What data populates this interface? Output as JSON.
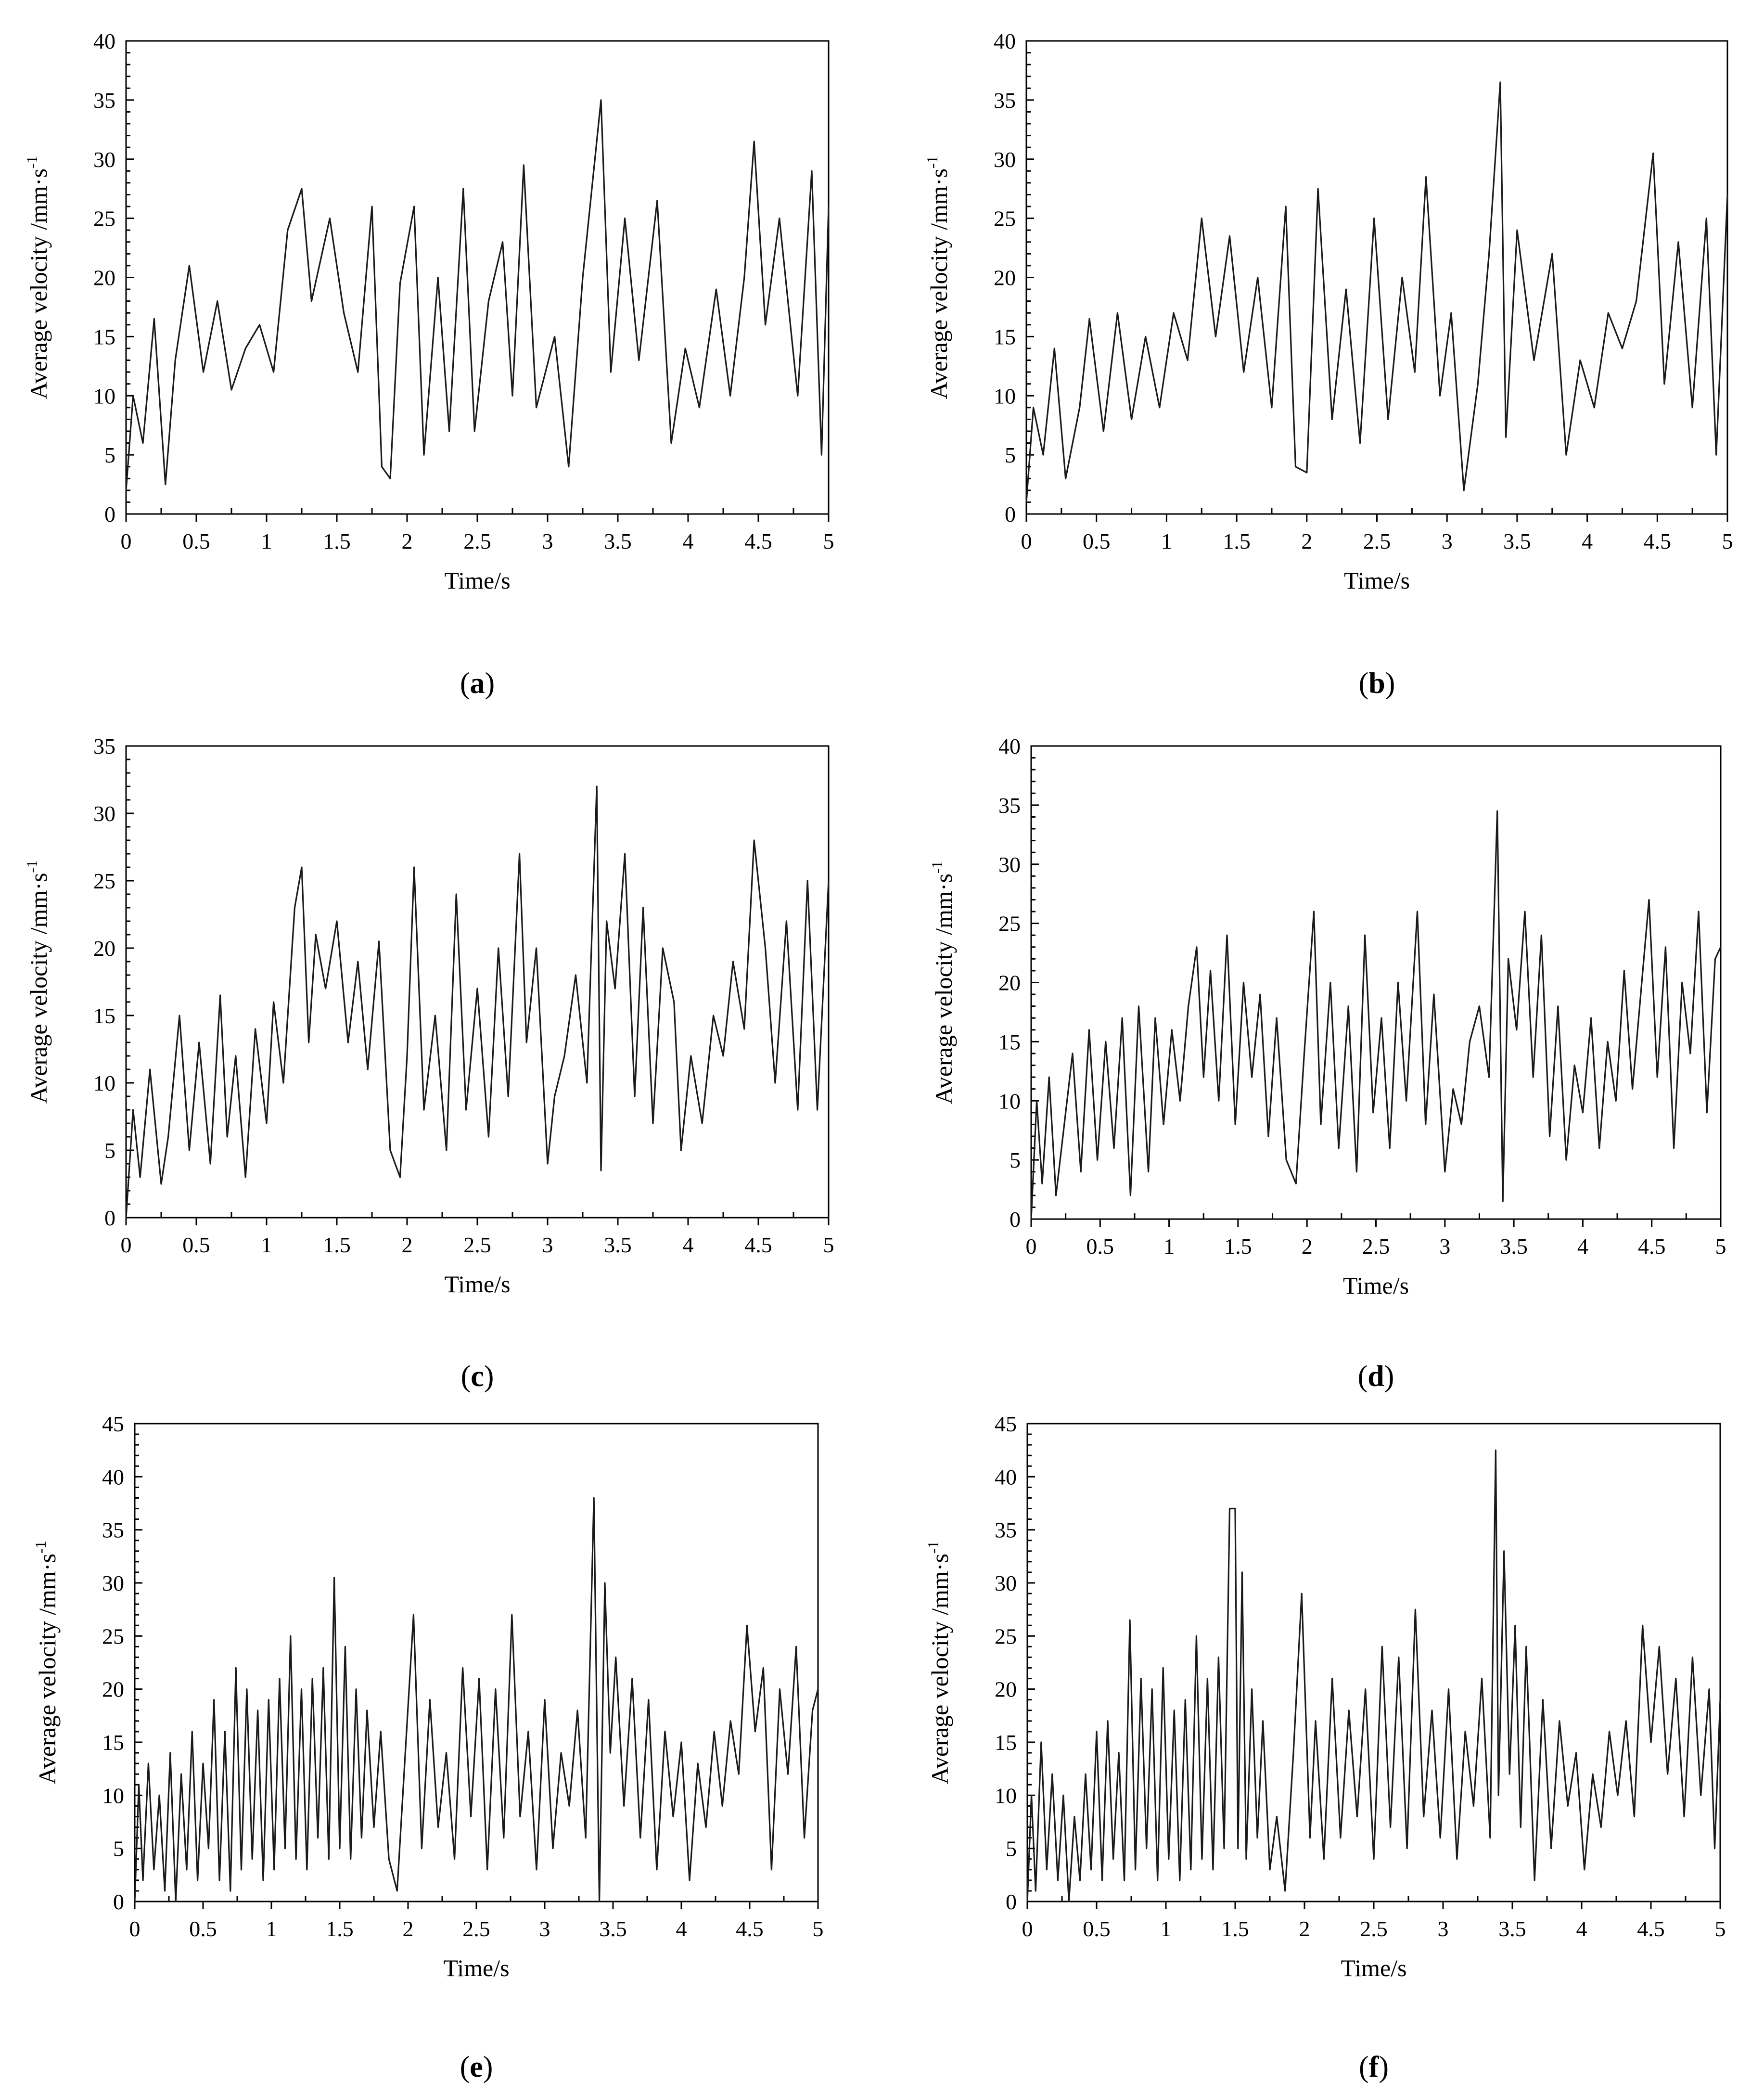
{
  "chart_data": [
    {
      "panel": "(a)",
      "type": "line",
      "xlabel": "Time/s",
      "ylabel": "Average velocity /mm·s",
      "ylabel_sup": "-1",
      "xlim": [
        0,
        5
      ],
      "ylim": [
        0,
        40
      ],
      "xticks": [
        0,
        0.5,
        1,
        1.5,
        2,
        2.5,
        3,
        3.5,
        4,
        4.5,
        5
      ],
      "yticks": [
        0,
        5,
        10,
        15,
        20,
        25,
        30,
        35,
        40
      ],
      "grid": false,
      "series": [
        {
          "x": [
            0,
            0.05,
            0.12,
            0.2,
            0.28,
            0.35,
            0.45,
            0.55,
            0.65,
            0.75,
            0.85,
            0.95,
            1.05,
            1.15,
            1.25,
            1.32,
            1.45,
            1.55,
            1.65,
            1.75,
            1.82,
            1.88,
            1.95,
            2.05,
            2.12,
            2.22,
            2.3,
            2.4,
            2.48,
            2.58,
            2.68,
            2.75,
            2.83,
            2.92,
            3.05,
            3.15,
            3.25,
            3.38,
            3.45,
            3.55,
            3.65,
            3.78,
            3.88,
            3.98,
            4.08,
            4.2,
            4.3,
            4.4,
            4.47,
            4.55,
            4.65,
            4.78,
            4.88,
            4.95,
            5.0
          ],
          "y": [
            2,
            10,
            6,
            16.5,
            2.5,
            13,
            21,
            12,
            18,
            10.5,
            14,
            16,
            12,
            24,
            27.5,
            18,
            25,
            17,
            12,
            26,
            4,
            3,
            19.5,
            26,
            5,
            20,
            7,
            27.5,
            7,
            18,
            23,
            10,
            29.5,
            9,
            15,
            4,
            20,
            35,
            12,
            25,
            13,
            26.5,
            6,
            14,
            9,
            19,
            10,
            20,
            31.5,
            16,
            25,
            10,
            29,
            5,
            26
          ]
        }
      ]
    },
    {
      "panel": "(b)",
      "type": "line",
      "xlabel": "Time/s",
      "ylabel": "Average velocity /mm·s",
      "ylabel_sup": "-1",
      "xlim": [
        0,
        5
      ],
      "ylim": [
        0,
        40
      ],
      "xticks": [
        0,
        0.5,
        1,
        1.5,
        2,
        2.5,
        3,
        3.5,
        4,
        4.5,
        5
      ],
      "yticks": [
        0,
        5,
        10,
        15,
        20,
        25,
        30,
        35,
        40
      ],
      "grid": false,
      "series": [
        {
          "x": [
            0,
            0.05,
            0.12,
            0.2,
            0.28,
            0.38,
            0.45,
            0.55,
            0.65,
            0.75,
            0.85,
            0.95,
            1.05,
            1.15,
            1.25,
            1.35,
            1.45,
            1.55,
            1.65,
            1.75,
            1.85,
            1.92,
            2.0,
            2.08,
            2.18,
            2.28,
            2.38,
            2.48,
            2.58,
            2.68,
            2.77,
            2.85,
            2.95,
            3.03,
            3.12,
            3.22,
            3.3,
            3.38,
            3.42,
            3.5,
            3.62,
            3.75,
            3.85,
            3.95,
            4.05,
            4.15,
            4.25,
            4.35,
            4.47,
            4.55,
            4.65,
            4.75,
            4.85,
            4.92,
            5.0
          ],
          "y": [
            1,
            9,
            5,
            14,
            3,
            9,
            16.5,
            7,
            17,
            8,
            15,
            9,
            17,
            13,
            25,
            15,
            23.5,
            12,
            20,
            9,
            26,
            4,
            3.5,
            27.5,
            8,
            19,
            6,
            25,
            8,
            20,
            12,
            28.5,
            10,
            17,
            2,
            11,
            22,
            36.5,
            6.5,
            24,
            13,
            22,
            5,
            13,
            9,
            17,
            14,
            18,
            30.5,
            11,
            23,
            9,
            25,
            5,
            27
          ]
        }
      ]
    },
    {
      "panel": "(c)",
      "type": "line",
      "xlabel": "Time/s",
      "ylabel": "Average velocity /mm·s",
      "ylabel_sup": "-1",
      "xlim": [
        0,
        5
      ],
      "ylim": [
        0,
        35
      ],
      "xticks": [
        0,
        0.5,
        1,
        1.5,
        2,
        2.5,
        3,
        3.5,
        4,
        4.5,
        5
      ],
      "yticks": [
        0,
        5,
        10,
        15,
        20,
        25,
        30,
        35
      ],
      "grid": false,
      "series": [
        {
          "x": [
            0,
            0.05,
            0.1,
            0.17,
            0.25,
            0.3,
            0.38,
            0.45,
            0.52,
            0.6,
            0.67,
            0.72,
            0.78,
            0.85,
            0.92,
            1.0,
            1.05,
            1.12,
            1.2,
            1.25,
            1.3,
            1.35,
            1.42,
            1.5,
            1.58,
            1.65,
            1.72,
            1.8,
            1.88,
            1.95,
            2.0,
            2.05,
            2.12,
            2.2,
            2.28,
            2.35,
            2.42,
            2.5,
            2.58,
            2.65,
            2.72,
            2.8,
            2.85,
            2.92,
            3.0,
            3.05,
            3.12,
            3.2,
            3.28,
            3.35,
            3.38,
            3.42,
            3.48,
            3.55,
            3.62,
            3.68,
            3.75,
            3.82,
            3.9,
            3.95,
            4.02,
            4.1,
            4.18,
            4.25,
            4.32,
            4.4,
            4.47,
            4.55,
            4.62,
            4.7,
            4.78,
            4.85,
            4.92,
            5.0
          ],
          "y": [
            0,
            8,
            3,
            11,
            2.5,
            6,
            15,
            5,
            13,
            4,
            16.5,
            6,
            12,
            3,
            14,
            7,
            16,
            10,
            23,
            26,
            13,
            21,
            17,
            22,
            13,
            19,
            11,
            20.5,
            5,
            3,
            12,
            26,
            8,
            15,
            5,
            24,
            8,
            17,
            6,
            20,
            9,
            27,
            13,
            20,
            4,
            9,
            12,
            18,
            10,
            32,
            3.5,
            22,
            17,
            27,
            9,
            23,
            7,
            20,
            16,
            5,
            12,
            7,
            15,
            12,
            19,
            14,
            28,
            20,
            10,
            22,
            8,
            25,
            8,
            25
          ]
        }
      ]
    },
    {
      "panel": "(d)",
      "type": "line",
      "xlabel": "Time/s",
      "ylabel": "Average velocity /mm·s",
      "ylabel_sup": "-1",
      "xlim": [
        0,
        5
      ],
      "ylim": [
        0,
        40
      ],
      "xticks": [
        0,
        0.5,
        1,
        1.5,
        2,
        2.5,
        3,
        3.5,
        4,
        4.5,
        5
      ],
      "yticks": [
        0,
        5,
        10,
        15,
        20,
        25,
        30,
        35,
        40
      ],
      "grid": false,
      "series": [
        {
          "x": [
            0,
            0.04,
            0.08,
            0.13,
            0.18,
            0.24,
            0.3,
            0.36,
            0.42,
            0.48,
            0.54,
            0.6,
            0.66,
            0.72,
            0.78,
            0.85,
            0.9,
            0.96,
            1.02,
            1.08,
            1.14,
            1.2,
            1.25,
            1.3,
            1.36,
            1.42,
            1.48,
            1.54,
            1.6,
            1.66,
            1.72,
            1.78,
            1.85,
            1.92,
            1.98,
            2.05,
            2.1,
            2.17,
            2.23,
            2.3,
            2.36,
            2.42,
            2.48,
            2.54,
            2.6,
            2.66,
            2.72,
            2.8,
            2.86,
            2.92,
            3.0,
            3.06,
            3.12,
            3.18,
            3.25,
            3.32,
            3.38,
            3.42,
            3.46,
            3.52,
            3.58,
            3.64,
            3.7,
            3.76,
            3.82,
            3.88,
            3.94,
            4.0,
            4.06,
            4.12,
            4.18,
            4.24,
            4.3,
            4.36,
            4.42,
            4.48,
            4.54,
            4.6,
            4.66,
            4.72,
            4.78,
            4.84,
            4.9,
            4.96,
            5.0
          ],
          "y": [
            0,
            10,
            3,
            12,
            2,
            8,
            14,
            4,
            16,
            5,
            15,
            6,
            17,
            2,
            18,
            4,
            17,
            8,
            16,
            10,
            18,
            23,
            12,
            21,
            10,
            24,
            8,
            20,
            12,
            19,
            7,
            17,
            5,
            3,
            14,
            26,
            8,
            20,
            6,
            18,
            4,
            24,
            9,
            17,
            6,
            20,
            10,
            26,
            8,
            19,
            4,
            11,
            8,
            15,
            18,
            12,
            34.5,
            1.5,
            22,
            16,
            26,
            12,
            24,
            7,
            18,
            5,
            13,
            9,
            17,
            6,
            15,
            10,
            21,
            11,
            19,
            27,
            12,
            23,
            6,
            20,
            14,
            26,
            9,
            22,
            23
          ]
        }
      ]
    },
    {
      "panel": "(e)",
      "type": "line",
      "xlabel": "Time/s",
      "ylabel": "Average velocity /mm·s",
      "ylabel_sup": "-1",
      "xlim": [
        0,
        5
      ],
      "ylim": [
        0,
        45
      ],
      "xticks": [
        0,
        0.5,
        1,
        1.5,
        2,
        2.5,
        3,
        3.5,
        4,
        4.5,
        5
      ],
      "yticks": [
        0,
        5,
        10,
        15,
        20,
        25,
        30,
        35,
        40,
        45
      ],
      "grid": false,
      "series": [
        {
          "x": [
            0,
            0.03,
            0.06,
            0.1,
            0.14,
            0.18,
            0.22,
            0.26,
            0.3,
            0.34,
            0.38,
            0.42,
            0.46,
            0.5,
            0.54,
            0.58,
            0.62,
            0.66,
            0.7,
            0.74,
            0.78,
            0.82,
            0.86,
            0.9,
            0.94,
            0.98,
            1.02,
            1.06,
            1.1,
            1.14,
            1.18,
            1.22,
            1.26,
            1.3,
            1.34,
            1.38,
            1.42,
            1.46,
            1.5,
            1.54,
            1.58,
            1.62,
            1.66,
            1.7,
            1.75,
            1.8,
            1.86,
            1.92,
            1.98,
            2.04,
            2.1,
            2.16,
            2.22,
            2.28,
            2.34,
            2.4,
            2.46,
            2.52,
            2.58,
            2.64,
            2.7,
            2.76,
            2.82,
            2.88,
            2.94,
            3.0,
            3.06,
            3.12,
            3.18,
            3.24,
            3.3,
            3.36,
            3.4,
            3.44,
            3.48,
            3.52,
            3.58,
            3.64,
            3.7,
            3.76,
            3.82,
            3.88,
            3.94,
            4.0,
            4.06,
            4.12,
            4.18,
            4.24,
            4.3,
            4.36,
            4.42,
            4.48,
            4.54,
            4.6,
            4.66,
            4.72,
            4.78,
            4.84,
            4.9,
            4.96,
            5.0
          ],
          "y": [
            0,
            11,
            2,
            13,
            3,
            10,
            1,
            14,
            0,
            12,
            3,
            16,
            2,
            13,
            5,
            19,
            2,
            16,
            1,
            22,
            3,
            20,
            4,
            18,
            2,
            19,
            3,
            21,
            5,
            25,
            4,
            20,
            3,
            21,
            6,
            22,
            4,
            30.5,
            5,
            24,
            4,
            20,
            6,
            18,
            7,
            16,
            4,
            1,
            14,
            27,
            5,
            19,
            7,
            14,
            4,
            22,
            8,
            21,
            3,
            20,
            6,
            27,
            8,
            16,
            3,
            19,
            5,
            14,
            9,
            18,
            6,
            38,
            0,
            30,
            14,
            23,
            9,
            21,
            6,
            19,
            3,
            16,
            8,
            15,
            2,
            13,
            7,
            16,
            9,
            17,
            12,
            26,
            16,
            22,
            3,
            20,
            12,
            24,
            6,
            18,
            20
          ]
        }
      ]
    },
    {
      "panel": "(f)",
      "type": "line",
      "xlabel": "Time/s",
      "ylabel": "Average velocity /mm·s",
      "ylabel_sup": "-1",
      "xlim": [
        0,
        5
      ],
      "ylim": [
        0,
        45
      ],
      "xticks": [
        0,
        0.5,
        1,
        1.5,
        2,
        2.5,
        3,
        3.5,
        4,
        4.5,
        5
      ],
      "yticks": [
        0,
        5,
        10,
        15,
        20,
        25,
        30,
        35,
        40,
        45
      ],
      "grid": false,
      "series": [
        {
          "x": [
            0,
            0.03,
            0.06,
            0.1,
            0.14,
            0.18,
            0.22,
            0.26,
            0.3,
            0.34,
            0.38,
            0.42,
            0.46,
            0.5,
            0.54,
            0.58,
            0.62,
            0.66,
            0.7,
            0.74,
            0.78,
            0.82,
            0.86,
            0.9,
            0.94,
            0.98,
            1.02,
            1.06,
            1.1,
            1.14,
            1.18,
            1.22,
            1.26,
            1.3,
            1.34,
            1.38,
            1.42,
            1.46,
            1.5,
            1.52,
            1.55,
            1.58,
            1.62,
            1.66,
            1.7,
            1.75,
            1.8,
            1.86,
            1.92,
            1.98,
            2.04,
            2.08,
            2.14,
            2.2,
            2.26,
            2.32,
            2.38,
            2.44,
            2.5,
            2.56,
            2.62,
            2.68,
            2.74,
            2.8,
            2.86,
            2.92,
            2.98,
            3.04,
            3.1,
            3.16,
            3.22,
            3.28,
            3.34,
            3.38,
            3.4,
            3.44,
            3.48,
            3.52,
            3.56,
            3.6,
            3.66,
            3.72,
            3.78,
            3.84,
            3.9,
            3.96,
            4.02,
            4.08,
            4.14,
            4.2,
            4.26,
            4.32,
            4.38,
            4.44,
            4.5,
            4.56,
            4.62,
            4.68,
            4.74,
            4.8,
            4.86,
            4.92,
            4.96,
            5.0
          ],
          "y": [
            0,
            10,
            1,
            15,
            3,
            12,
            2,
            10,
            0,
            8,
            2,
            12,
            3,
            16,
            2,
            17,
            4,
            14,
            2,
            26.5,
            3,
            21,
            5,
            20,
            2,
            22,
            4,
            18,
            2,
            19,
            3,
            25,
            4,
            21,
            3,
            23,
            5,
            37,
            37,
            5,
            31,
            4,
            20,
            6,
            17,
            3,
            8,
            1,
            14,
            29,
            6,
            17,
            4,
            21,
            6,
            18,
            8,
            20,
            4,
            24,
            7,
            23,
            5,
            27.5,
            8,
            18,
            6,
            20,
            4,
            16,
            9,
            21,
            6,
            42.5,
            10,
            33,
            12,
            26,
            7,
            24,
            2,
            19,
            5,
            17,
            9,
            14,
            3,
            12,
            7,
            16,
            10,
            17,
            8,
            26,
            15,
            24,
            12,
            21,
            8,
            23,
            10,
            20,
            5,
            19
          ]
        }
      ]
    }
  ]
}
